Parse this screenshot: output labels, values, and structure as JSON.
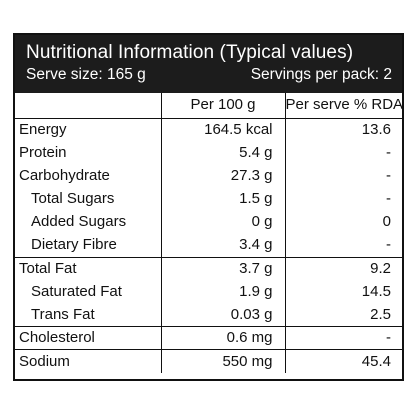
{
  "header": {
    "title": "Nutritional Information (Typical values)",
    "serve_size": "Serve size: 165 g",
    "servings": "Servings per pack: 2"
  },
  "columns": {
    "per100": "Per 100 g",
    "perserve": "Per serve % RDA"
  },
  "rows": [
    {
      "name": "Energy",
      "per100": "164.5 kcal",
      "rda": "13.6"
    },
    {
      "name": "Protein",
      "per100": "5.4 g",
      "rda": "-"
    },
    {
      "name": "Carbohydrate",
      "per100": "27.3 g",
      "rda": "-"
    },
    {
      "name": "Total Sugars",
      "per100": "1.5 g",
      "rda": "-"
    },
    {
      "name": "Added Sugars",
      "per100": "0 g",
      "rda": "0"
    },
    {
      "name": "Dietary Fibre",
      "per100": "3.4 g",
      "rda": "-"
    },
    {
      "name": "Total Fat",
      "per100": "3.7 g",
      "rda": "9.2"
    },
    {
      "name": "Saturated Fat",
      "per100": "1.9 g",
      "rda": "14.5"
    },
    {
      "name": "Trans Fat",
      "per100": "0.03 g",
      "rda": "2.5"
    },
    {
      "name": "Cholesterol",
      "per100": "0.6 mg",
      "rda": "-"
    },
    {
      "name": "Sodium",
      "per100": "550 mg",
      "rda": "45.4"
    }
  ]
}
